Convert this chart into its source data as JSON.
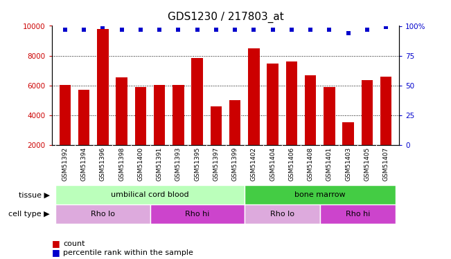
{
  "title": "GDS1230 / 217803_at",
  "samples": [
    "GSM51392",
    "GSM51394",
    "GSM51396",
    "GSM51398",
    "GSM51400",
    "GSM51391",
    "GSM51393",
    "GSM51395",
    "GSM51397",
    "GSM51399",
    "GSM51402",
    "GSM51404",
    "GSM51406",
    "GSM51408",
    "GSM51401",
    "GSM51403",
    "GSM51405",
    "GSM51407"
  ],
  "counts": [
    6050,
    5700,
    9800,
    6550,
    5900,
    6050,
    6050,
    7850,
    4600,
    5000,
    8500,
    7450,
    7600,
    6700,
    5900,
    3550,
    6350,
    6600
  ],
  "percentile_ranks": [
    97,
    97,
    99,
    97,
    97,
    97,
    97,
    97,
    97,
    97,
    97,
    97,
    97,
    97,
    97,
    94,
    97,
    99
  ],
  "bar_color": "#cc0000",
  "dot_color": "#0000cc",
  "ylim_left": [
    2000,
    10000
  ],
  "ylim_right": [
    0,
    100
  ],
  "yticks_left": [
    2000,
    4000,
    6000,
    8000,
    10000
  ],
  "yticks_right": [
    0,
    25,
    50,
    75,
    100
  ],
  "grid_values": [
    4000,
    6000,
    8000,
    10000
  ],
  "tissue_groups": [
    {
      "label": "umbilical cord blood",
      "start": 0,
      "end": 10,
      "color": "#bbffbb"
    },
    {
      "label": "bone marrow",
      "start": 10,
      "end": 18,
      "color": "#44cc44"
    }
  ],
  "cell_type_groups": [
    {
      "label": "Rho lo",
      "start": 0,
      "end": 5,
      "color": "#ddaadd"
    },
    {
      "label": "Rho hi",
      "start": 5,
      "end": 10,
      "color": "#cc44cc"
    },
    {
      "label": "Rho lo",
      "start": 10,
      "end": 14,
      "color": "#ddaadd"
    },
    {
      "label": "Rho hi",
      "start": 14,
      "end": 18,
      "color": "#cc44cc"
    }
  ],
  "legend_count_label": "count",
  "legend_pct_label": "percentile rank within the sample",
  "tissue_label": "tissue",
  "cell_type_label": "cell type",
  "title_fontsize": 11,
  "label_fontsize": 8,
  "tick_fontsize": 7.5,
  "xtick_fontsize": 6.5,
  "annotation_fontsize": 8
}
